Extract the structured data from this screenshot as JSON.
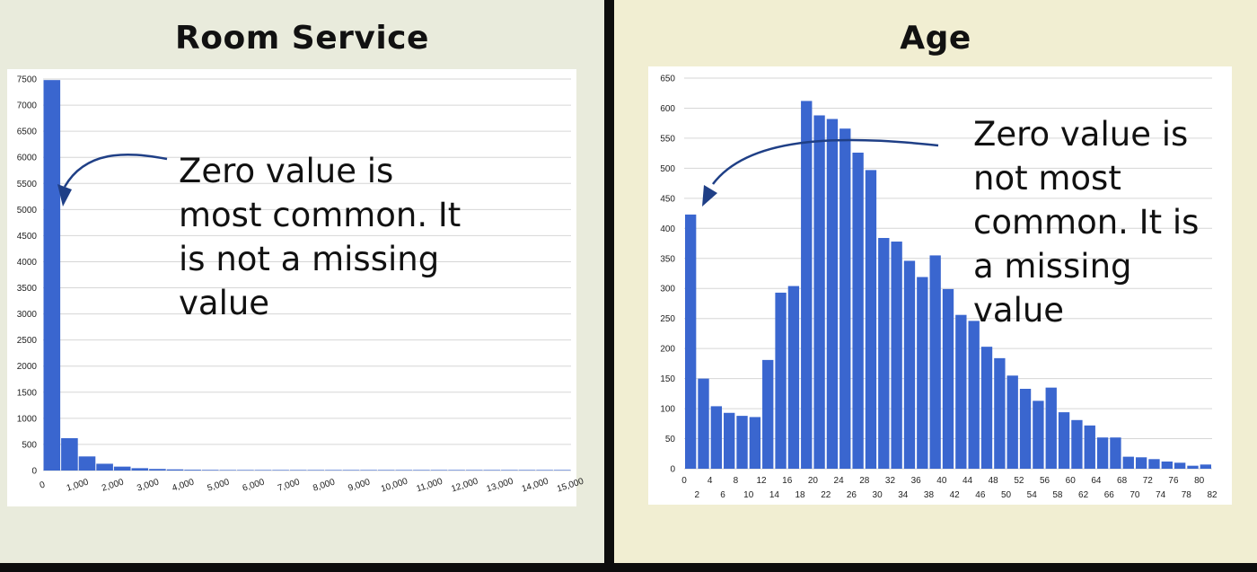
{
  "chart_data": [
    {
      "type": "bar",
      "title": "Room Service",
      "ylim": [
        0,
        7500
      ],
      "xlim": [
        0,
        15000
      ],
      "y_ticks": [
        "0",
        "500",
        "1000",
        "1500",
        "2000",
        "2500",
        "3000",
        "3500",
        "4000",
        "4500",
        "5000",
        "5500",
        "6000",
        "6500",
        "7000",
        "7500"
      ],
      "x_ticks": [
        "0",
        "1,000",
        "2,000",
        "3,000",
        "4,000",
        "5,000",
        "6,000",
        "7,000",
        "8,000",
        "9,000",
        "10,000",
        "11,000",
        "12,000",
        "13,000",
        "14,000",
        "15,000"
      ],
      "grid": true,
      "bin_width": 500,
      "values": [
        7480,
        620,
        270,
        130,
        75,
        45,
        30,
        22,
        15,
        12,
        10,
        8,
        6,
        5,
        4,
        3,
        5,
        3,
        2,
        2,
        2,
        1,
        1,
        1,
        5,
        1,
        1,
        1,
        1,
        1
      ],
      "annotation": "Zero value is\nmost common. It\nis not a missing\nvalue"
    },
    {
      "type": "bar",
      "title": "Age",
      "ylim": [
        0,
        650
      ],
      "xlim": [
        0,
        82
      ],
      "y_ticks": [
        "0",
        "50",
        "100",
        "150",
        "200",
        "250",
        "300",
        "350",
        "400",
        "450",
        "500",
        "550",
        "600",
        "650"
      ],
      "x_ticks_top": [
        "0",
        "4",
        "8",
        "12",
        "16",
        "20",
        "24",
        "28",
        "32",
        "36",
        "40",
        "44",
        "48",
        "52",
        "56",
        "60",
        "64",
        "68",
        "72",
        "76",
        "80"
      ],
      "x_ticks_bottom": [
        "2",
        "6",
        "10",
        "14",
        "18",
        "22",
        "26",
        "30",
        "34",
        "38",
        "42",
        "46",
        "50",
        "54",
        "58",
        "62",
        "66",
        "70",
        "74",
        "78",
        "82"
      ],
      "grid": true,
      "bin_width": 2,
      "values": [
        423,
        150,
        104,
        93,
        88,
        86,
        181,
        293,
        304,
        612,
        588,
        582,
        566,
        526,
        497,
        384,
        378,
        346,
        319,
        355,
        299,
        256,
        246,
        203,
        184,
        155,
        133,
        113,
        135,
        94,
        81,
        72,
        52,
        52,
        20,
        19,
        16,
        12,
        10,
        5,
        7
      ],
      "annotation": "Zero value is\nnot most\ncommon. It is\na missing\nvalue"
    }
  ]
}
